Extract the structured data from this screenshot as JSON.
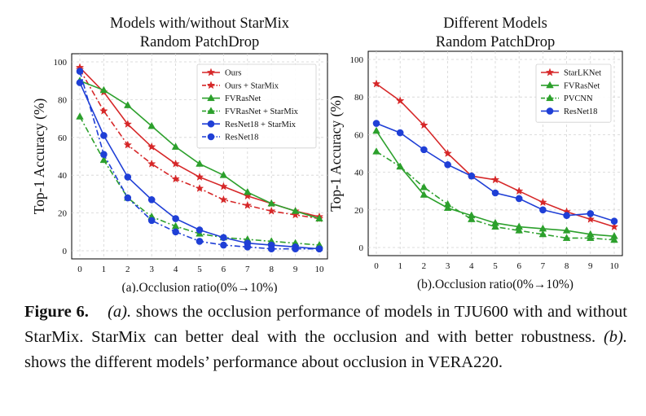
{
  "chart_data": [
    {
      "type": "line",
      "title": "Models with/without StarMix\nRandom PatchDrop",
      "xlabel": "(a).Occlusion ratio(0%→10%)",
      "ylabel": "Top-1 Accuracy (%)",
      "x": [
        0,
        1,
        2,
        3,
        4,
        5,
        6,
        7,
        8,
        9,
        10
      ],
      "xlim": [
        0,
        10
      ],
      "ylim": [
        0,
        100
      ],
      "yticks": [
        0,
        20,
        40,
        60,
        80,
        100
      ],
      "grid": true,
      "legend": "top-right",
      "series": [
        {
          "name": "Ours",
          "color": "#d62728",
          "dash": "solid",
          "marker": "star",
          "values": [
            97,
            84,
            67,
            55,
            46,
            39,
            34,
            29,
            25,
            21,
            18
          ]
        },
        {
          "name": "Ours + StarMix",
          "color": "#d62728",
          "dash": "dashdot",
          "marker": "star",
          "values": [
            96,
            74,
            56,
            46,
            38,
            33,
            27,
            24,
            21,
            19,
            17
          ]
        },
        {
          "name": "FVRasNet",
          "color": "#2ca02c",
          "dash": "solid",
          "marker": "triangle",
          "values": [
            90,
            85,
            77,
            66,
            55,
            46,
            40,
            31,
            25,
            21,
            17
          ]
        },
        {
          "name": "FVRasNet + StarMix",
          "color": "#2ca02c",
          "dash": "dashdot",
          "marker": "triangle",
          "values": [
            71,
            48,
            28,
            18,
            13,
            9,
            7,
            6,
            5,
            4,
            3
          ]
        },
        {
          "name": "ResNet18 + StarMix",
          "color": "#1f3fd6",
          "dash": "solid",
          "marker": "circle",
          "values": [
            89,
            61,
            39,
            27,
            17,
            11,
            7,
            4,
            3,
            2,
            1
          ]
        },
        {
          "name": "ResNet18",
          "color": "#1f3fd6",
          "dash": "dashdot",
          "marker": "circle",
          "values": [
            95,
            51,
            28,
            16,
            10,
            5,
            3,
            2,
            1,
            1,
            1
          ]
        }
      ]
    },
    {
      "type": "line",
      "title": "Different Models\nRandom PatchDrop",
      "xlabel": "(b).Occlusion ratio(0%→10%)",
      "ylabel": "Top-1 Accuracy (%)",
      "x": [
        0,
        1,
        2,
        3,
        4,
        5,
        6,
        7,
        8,
        9,
        10
      ],
      "xlim": [
        0,
        10
      ],
      "ylim": [
        0,
        100
      ],
      "yticks": [
        0,
        20,
        40,
        60,
        80,
        100
      ],
      "grid": true,
      "legend": "top-right",
      "series": [
        {
          "name": "StarLKNet",
          "color": "#d62728",
          "dash": "solid",
          "marker": "star",
          "values": [
            87,
            78,
            65,
            50,
            38,
            36,
            30,
            24,
            19,
            15,
            11
          ]
        },
        {
          "name": "FVRasNet",
          "color": "#2ca02c",
          "dash": "solid",
          "marker": "triangle",
          "values": [
            62,
            43,
            28,
            21,
            17,
            13,
            11,
            10,
            9,
            7,
            6
          ]
        },
        {
          "name": "PVCNN",
          "color": "#2ca02c",
          "dash": "dashdot",
          "marker": "triangle",
          "values": [
            51,
            43,
            32,
            23,
            15,
            11,
            9,
            7,
            5,
            5,
            4
          ]
        },
        {
          "name": "ResNet18",
          "color": "#1f3fd6",
          "dash": "solid",
          "marker": "circle",
          "values": [
            66,
            61,
            52,
            44,
            38,
            29,
            26,
            20,
            17,
            18,
            14
          ]
        }
      ]
    }
  ],
  "caption": {
    "label": "Figure 6.",
    "part_a": "(a).",
    "text_a": " shows the occlusion performance of models in TJU600 with and without StarMix. StarMix can better deal with the occlusion and with better robustness. ",
    "part_b": "(b).",
    "text_b": " shows the different models’ performance about occlusion in VERA220."
  }
}
